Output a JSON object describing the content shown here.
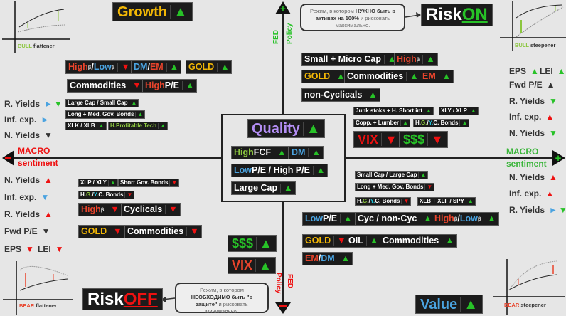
{
  "colors": {
    "red": "#e8442c",
    "blue": "#4aa3e0",
    "gold": "#f2b705",
    "lgreen": "#8cc63f",
    "green": "#27c227",
    "white": "#ffffff",
    "dark": "#333333",
    "purple": "#b48ef5",
    "teal": "#1fc1d6",
    "ared": "#ee1111",
    "gray": "#666666"
  },
  "axes": {
    "fed_top": "FED",
    "policy_top": "Policy",
    "fed_bottom": "FED",
    "policy_bottom": "Policy",
    "macro_left": "MACRO",
    "sentiment_left": "sentiment",
    "macro_right": "MACRO",
    "sentiment_right": "sentiment"
  },
  "charts": {
    "tl": {
      "a": "BULL",
      "b": " flattener"
    },
    "tr": {
      "a": "BULL",
      "b": " steepener"
    },
    "bl": {
      "a": "BEAR",
      "b": " flattener"
    },
    "br": {
      "a": "BEAR",
      "b": " steepener"
    }
  },
  "bubbles": {
    "on": {
      "parts": [
        {
          "t": "Режим, в котором "
        },
        {
          "t": "НУЖНО быть в активах на 100%",
          "b": 1
        },
        {
          "t": " и рисковать максимально."
        }
      ]
    },
    "off": {
      "parts": [
        {
          "t": "Режим, в котором "
        },
        {
          "t": "НЕОБХОДИМО быть \"в защите\"",
          "b": 1
        },
        {
          "t": " и рисковать минимально."
        }
      ]
    }
  },
  "tags": {
    "growth": {
      "parts": [
        {
          "t": "Growth",
          "c": "gold"
        }
      ],
      "arrows": [
        {
          "a": "▲",
          "c": "green"
        }
      ]
    },
    "tl_highlow": {
      "parts": [
        {
          "t": "High",
          "c": "red"
        },
        {
          "t": "β",
          "s": 1
        },
        {
          "t": "/",
          "c": "white"
        },
        {
          "t": "Low",
          "c": "blue"
        },
        {
          "t": "β",
          "s": 1
        }
      ],
      "arrows": [
        {
          "a": "▼",
          "c": "ared"
        }
      ]
    },
    "tl_dmem": {
      "parts": [
        {
          "t": "DM",
          "c": "blue"
        },
        {
          "t": " / ",
          "c": "white"
        },
        {
          "t": "EM",
          "c": "red"
        }
      ],
      "arrows": [
        {
          "a": "▲",
          "c": "green"
        }
      ]
    },
    "tl_gold": {
      "parts": [
        {
          "t": "GOLD",
          "c": "gold"
        }
      ],
      "arrows": [
        {
          "a": "▲",
          "c": "green"
        }
      ]
    },
    "tl_commod": {
      "parts": [
        {
          "t": "Commodities",
          "c": "white"
        }
      ],
      "arrows": [
        {
          "a": "▼",
          "c": "ared"
        }
      ]
    },
    "tl_highpe": {
      "parts": [
        {
          "t": "High ",
          "c": "red"
        },
        {
          "t": "P/E",
          "c": "white"
        }
      ],
      "arrows": [
        {
          "a": "▲",
          "c": "green"
        }
      ]
    },
    "tl_lcsc": {
      "parts": [
        {
          "t": "Large Cap / Small Cap",
          "c": "white"
        }
      ],
      "arrows": [
        {
          "a": "▲",
          "c": "green"
        }
      ]
    },
    "tl_longmed": {
      "parts": [
        {
          "t": "Long + Med. Gov. Bonds",
          "c": "white"
        }
      ],
      "arrows": [
        {
          "a": "▲",
          "c": "green"
        }
      ]
    },
    "tl_xlk": {
      "parts": [
        {
          "t": "XLK / XLB",
          "c": "white"
        }
      ],
      "arrows": [
        {
          "a": "▲",
          "c": "green"
        }
      ]
    },
    "tl_hptech": {
      "parts": [
        {
          "t": "H.Profitable Tech",
          "c": "lgreen"
        }
      ],
      "arrows": [
        {
          "a": "▲",
          "c": "green"
        }
      ]
    },
    "quality": {
      "parts": [
        {
          "t": "Quality",
          "c": "purple"
        }
      ],
      "arrows": [
        {
          "a": "▲",
          "c": "green"
        }
      ]
    },
    "q_hfcf": {
      "parts": [
        {
          "t": "High ",
          "c": "lgreen"
        },
        {
          "t": "FCF",
          "c": "white"
        }
      ],
      "arrows": [
        {
          "a": "▲",
          "c": "green"
        }
      ]
    },
    "q_dm": {
      "parts": [
        {
          "t": "DM",
          "c": "blue"
        }
      ],
      "arrows": [
        {
          "a": "▲",
          "c": "green"
        }
      ]
    },
    "q_lowpe": {
      "parts": [
        {
          "t": "Low ",
          "c": "blue"
        },
        {
          "t": "P/E / High P/E",
          "c": "white"
        }
      ],
      "arrows": [
        {
          "a": "▲",
          "c": "green"
        }
      ]
    },
    "q_largecap": {
      "parts": [
        {
          "t": "Large Cap",
          "c": "white"
        }
      ],
      "arrows": [
        {
          "a": "▲",
          "c": "green"
        }
      ]
    },
    "riskon": {
      "parts": [
        {
          "t": "Risk ",
          "c": "white"
        },
        {
          "t": "ON",
          "c": "green",
          "u": 1
        }
      ],
      "arrows": []
    },
    "tr_smallmicro": {
      "parts": [
        {
          "t": "Small + Micro Cap",
          "c": "white"
        }
      ],
      "arrows": [
        {
          "a": "▲",
          "c": "green"
        }
      ]
    },
    "tr_highb": {
      "parts": [
        {
          "t": "High",
          "c": "red"
        },
        {
          "t": "β",
          "s": 1
        }
      ],
      "arrows": [
        {
          "a": "▲",
          "c": "green"
        }
      ]
    },
    "tr_gold": {
      "parts": [
        {
          "t": "GOLD",
          "c": "gold"
        }
      ],
      "arrows": [
        {
          "a": "▲",
          "c": "green"
        }
      ]
    },
    "tr_commod": {
      "parts": [
        {
          "t": "Commodities",
          "c": "white"
        }
      ],
      "arrows": [
        {
          "a": "▲",
          "c": "green"
        }
      ]
    },
    "tr_em": {
      "parts": [
        {
          "t": "EM",
          "c": "red"
        }
      ],
      "arrows": [
        {
          "a": "▲",
          "c": "green"
        }
      ]
    },
    "tr_noncyc": {
      "parts": [
        {
          "t": "non-Cyclicals",
          "c": "white"
        }
      ],
      "arrows": [
        {
          "a": "▲",
          "c": "green"
        }
      ]
    },
    "tr_junk": {
      "parts": [
        {
          "t": "Junk stoks + H. Short int",
          "c": "white"
        }
      ],
      "arrows": [
        {
          "a": "▲",
          "c": "green"
        }
      ]
    },
    "tr_xly": {
      "parts": [
        {
          "t": "XLY / XLP",
          "c": "white"
        }
      ],
      "arrows": [
        {
          "a": "▲",
          "c": "green"
        }
      ]
    },
    "tr_copp": {
      "parts": [
        {
          "t": "Copp. + Lumber",
          "c": "white"
        }
      ],
      "arrows": [
        {
          "a": "▲",
          "c": "green"
        }
      ]
    },
    "tr_hgyc": {
      "parts": [
        {
          "t": "H. ",
          "c": "white"
        },
        {
          "t": "G.",
          "c": "lgreen"
        },
        {
          "t": " / ",
          "c": "white"
        },
        {
          "t": "Y.",
          "c": "teal"
        },
        {
          "t": " C. Bonds",
          "c": "white"
        }
      ],
      "arrows": [
        {
          "a": "▲",
          "c": "green"
        }
      ]
    },
    "tr_vix": {
      "parts": [
        {
          "t": "VIX",
          "c": "ared"
        }
      ],
      "arrows": [
        {
          "a": "▼",
          "c": "ared"
        }
      ]
    },
    "tr_usd": {
      "parts": [
        {
          "t": "$$$",
          "c": "green"
        }
      ],
      "arrows": [
        {
          "a": "▼",
          "c": "ared"
        }
      ]
    },
    "br_sclc": {
      "parts": [
        {
          "t": "Small Cap / Large Cap",
          "c": "white"
        }
      ],
      "arrows": [
        {
          "a": "▲",
          "c": "green"
        }
      ]
    },
    "br_longmed": {
      "parts": [
        {
          "t": "Long + Med. Gov. Bonds",
          "c": "white"
        }
      ],
      "arrows": [
        {
          "a": "▼",
          "c": "ared"
        }
      ]
    },
    "br_hgyc": {
      "parts": [
        {
          "t": "H. ",
          "c": "white"
        },
        {
          "t": "G.",
          "c": "lgreen"
        },
        {
          "t": "/",
          "c": "white"
        },
        {
          "t": "Y.",
          "c": "teal"
        },
        {
          "t": " C. Bonds",
          "c": "white"
        }
      ],
      "arrows": [
        {
          "a": "▼",
          "c": "ared"
        }
      ]
    },
    "br_xlb": {
      "parts": [
        {
          "t": "XLB + XLF / SPY",
          "c": "white"
        }
      ],
      "arrows": [
        {
          "a": "▲",
          "c": "green"
        }
      ]
    },
    "br_lowpe": {
      "parts": [
        {
          "t": "Low ",
          "c": "blue"
        },
        {
          "t": "P/E",
          "c": "white"
        }
      ],
      "arrows": [
        {
          "a": "▲",
          "c": "green"
        }
      ]
    },
    "br_cyc": {
      "parts": [
        {
          "t": "Cyc / non-Cyc",
          "c": "white"
        }
      ],
      "arrows": [
        {
          "a": "▲",
          "c": "green"
        }
      ]
    },
    "br_highlow": {
      "parts": [
        {
          "t": "High",
          "c": "red"
        },
        {
          "t": "β",
          "s": 1
        },
        {
          "t": "/",
          "c": "white"
        },
        {
          "t": "Low",
          "c": "blue"
        },
        {
          "t": "β",
          "s": 1
        }
      ],
      "arrows": [
        {
          "a": "▲",
          "c": "green"
        }
      ]
    },
    "br_gold": {
      "parts": [
        {
          "t": "GOLD",
          "c": "gold"
        }
      ],
      "arrows": [
        {
          "a": "▼",
          "c": "ared"
        }
      ]
    },
    "br_oil": {
      "parts": [
        {
          "t": "OIL",
          "c": "white"
        }
      ],
      "arrows": [
        {
          "a": "▲",
          "c": "green"
        }
      ]
    },
    "br_commod": {
      "parts": [
        {
          "t": "Commodities",
          "c": "white"
        }
      ],
      "arrows": [
        {
          "a": "▲",
          "c": "green"
        }
      ]
    },
    "br_emdm": {
      "parts": [
        {
          "t": "EM",
          "c": "red"
        },
        {
          "t": " / ",
          "c": "white"
        },
        {
          "t": "DM",
          "c": "blue"
        }
      ],
      "arrows": [
        {
          "a": "▲",
          "c": "green"
        }
      ]
    },
    "value": {
      "parts": [
        {
          "t": "Value",
          "c": "blue"
        }
      ],
      "arrows": [
        {
          "a": "▲",
          "c": "green"
        }
      ]
    },
    "bl_xlp": {
      "parts": [
        {
          "t": "XLP / XLY",
          "c": "white"
        }
      ],
      "arrows": [
        {
          "a": "▲",
          "c": "green"
        }
      ]
    },
    "bl_short": {
      "parts": [
        {
          "t": "Short Gov. Bonds",
          "c": "white"
        }
      ],
      "arrows": [
        {
          "a": "▼",
          "c": "ared"
        }
      ]
    },
    "bl_hgyc": {
      "parts": [
        {
          "t": "H. ",
          "c": "white"
        },
        {
          "t": "G.",
          "c": "lgreen"
        },
        {
          "t": " / ",
          "c": "white"
        },
        {
          "t": "Y.",
          "c": "teal"
        },
        {
          "t": " C. Bonds",
          "c": "white"
        }
      ],
      "arrows": [
        {
          "a": "▼",
          "c": "ared"
        }
      ]
    },
    "bl_highb": {
      "parts": [
        {
          "t": "High",
          "c": "red"
        },
        {
          "t": "β",
          "s": 1
        }
      ],
      "arrows": [
        {
          "a": "▼",
          "c": "ared"
        }
      ]
    },
    "bl_cyc": {
      "parts": [
        {
          "t": "Cyclicals",
          "c": "white"
        }
      ],
      "arrows": [
        {
          "a": "▼",
          "c": "ared"
        }
      ]
    },
    "bl_gold": {
      "parts": [
        {
          "t": "GOLD",
          "c": "gold"
        }
      ],
      "arrows": [
        {
          "a": "▼",
          "c": "ared"
        }
      ]
    },
    "bl_commod": {
      "parts": [
        {
          "t": "Commodities",
          "c": "white"
        }
      ],
      "arrows": [
        {
          "a": "▼",
          "c": "ared"
        }
      ]
    },
    "bl_usd": {
      "parts": [
        {
          "t": "$$$",
          "c": "green"
        }
      ],
      "arrows": [
        {
          "a": "▲",
          "c": "green"
        }
      ]
    },
    "bl_vix": {
      "parts": [
        {
          "t": "VIX",
          "c": "red"
        }
      ],
      "arrows": [
        {
          "a": "▲",
          "c": "green"
        }
      ]
    },
    "riskoff": {
      "parts": [
        {
          "t": "Risk ",
          "c": "white"
        },
        {
          "t": "OFF",
          "c": "ared",
          "u": 1
        }
      ],
      "arrows": []
    }
  },
  "indicators": {
    "tl_ry": {
      "parts": [
        {
          "t": "R. Yields"
        }
      ],
      "arrows": [
        {
          "a": "►",
          "c": "blue"
        },
        {
          "a": "▼",
          "c": "green"
        }
      ]
    },
    "tl_ie": {
      "parts": [
        {
          "t": "Inf. exp."
        }
      ],
      "arrows": [
        {
          "a": "►",
          "c": "blue"
        }
      ]
    },
    "tl_ny": {
      "parts": [
        {
          "t": "N. Yields"
        }
      ],
      "arrows": [
        {
          "a": "▼",
          "c": "dark"
        }
      ]
    },
    "tr_eps": {
      "parts": [
        {
          "t": "EPS"
        }
      ],
      "arrows": [
        {
          "a": "▲",
          "c": "green"
        }
      ]
    },
    "tr_lei": {
      "parts": [
        {
          "t": "LEI"
        }
      ],
      "arrows": [
        {
          "a": "▲",
          "c": "green"
        }
      ]
    },
    "tr_fpe": {
      "parts": [
        {
          "t": "Fwd P/E"
        }
      ],
      "arrows": [
        {
          "a": "▲",
          "c": "dark"
        }
      ]
    },
    "tr_ry": {
      "parts": [
        {
          "t": "R. Yields"
        }
      ],
      "arrows": [
        {
          "a": "▼",
          "c": "green"
        }
      ]
    },
    "tr_ie": {
      "parts": [
        {
          "t": "Inf. exp."
        }
      ],
      "arrows": [
        {
          "a": "▲",
          "c": "ared"
        }
      ]
    },
    "tr_ny": {
      "parts": [
        {
          "t": "N. Yields"
        }
      ],
      "arrows": [
        {
          "a": "▼",
          "c": "green"
        }
      ]
    },
    "br_ny": {
      "parts": [
        {
          "t": "N. Yields"
        }
      ],
      "arrows": [
        {
          "a": "▲",
          "c": "ared"
        }
      ]
    },
    "br_ie": {
      "parts": [
        {
          "t": "Inf. exp."
        }
      ],
      "arrows": [
        {
          "a": "▲",
          "c": "ared"
        }
      ]
    },
    "br_ry": {
      "parts": [
        {
          "t": "R. Yields"
        }
      ],
      "arrows": [
        {
          "a": "►",
          "c": "blue"
        },
        {
          "a": "▼",
          "c": "green"
        }
      ]
    },
    "bl_ny": {
      "parts": [
        {
          "t": "N. Yields"
        }
      ],
      "arrows": [
        {
          "a": "▲",
          "c": "ared"
        }
      ]
    },
    "bl_ie": {
      "parts": [
        {
          "t": "Inf. exp."
        }
      ],
      "arrows": [
        {
          "a": "▼",
          "c": "blue"
        }
      ]
    },
    "bl_ry": {
      "parts": [
        {
          "t": "R. Yields"
        }
      ],
      "arrows": [
        {
          "a": "▲",
          "c": "ared"
        }
      ]
    },
    "bl_fpe": {
      "parts": [
        {
          "t": "Fwd P/E"
        }
      ],
      "arrows": [
        {
          "a": "▼",
          "c": "dark"
        }
      ]
    },
    "bl_eps": {
      "parts": [
        {
          "t": "EPS"
        }
      ],
      "arrows": [
        {
          "a": "▼",
          "c": "ared"
        }
      ]
    },
    "bl_lei": {
      "parts": [
        {
          "t": "LEI"
        }
      ],
      "arrows": [
        {
          "a": "▼",
          "c": "ared"
        }
      ]
    }
  }
}
